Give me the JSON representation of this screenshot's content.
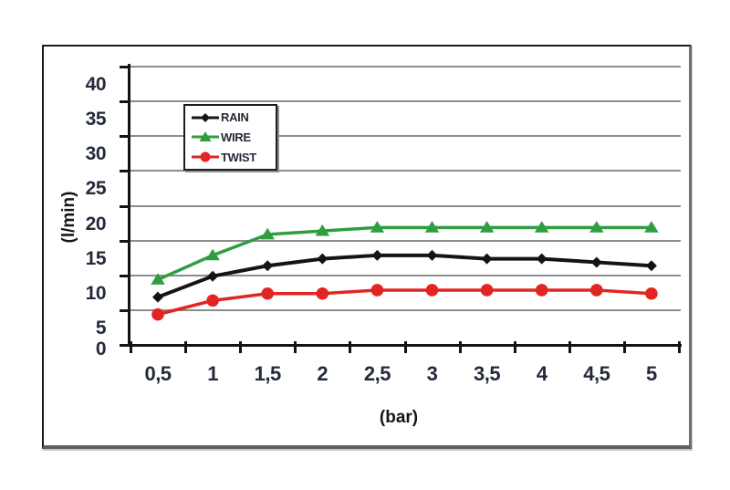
{
  "figure": {
    "type_note": "scanned line chart in a framed box",
    "background": "#ffffff",
    "frame_border_color": "#1b1b1b",
    "gridline_color": "#8c8c8c",
    "axis_color": "#141414",
    "tick_text_color": "#232a3a"
  },
  "chart_data": {
    "type": "line",
    "title": "",
    "xlabel": "(bar)",
    "ylabel": "(l/min)",
    "x": [
      0.5,
      1,
      1.5,
      2,
      2.5,
      3,
      3.5,
      4,
      4.5,
      5
    ],
    "x_tick_labels": [
      "0,5",
      "1",
      "1,5",
      "2",
      "2,5",
      "3",
      "3,5",
      "4",
      "4,5",
      "5"
    ],
    "y_tick_values": [
      0,
      5,
      10,
      15,
      20,
      25,
      30,
      35,
      40
    ],
    "y_tick_labels": [
      "0",
      "5",
      "10",
      "15",
      "20",
      "25",
      "30",
      "35",
      "40"
    ],
    "ylim": [
      0,
      40
    ],
    "grid": true,
    "legend_position": "upper-left",
    "series": [
      {
        "name": "RAIN",
        "color": "#141414",
        "marker": "diamond",
        "values": [
          9.5,
          12.5,
          14,
          15,
          15.5,
          15.5,
          15,
          15,
          14.5,
          14
        ]
      },
      {
        "name": "WIRE",
        "color": "#2f9e41",
        "marker": "triangle",
        "values": [
          12,
          15.5,
          18.5,
          19,
          19.5,
          19.5,
          19.5,
          19.5,
          19.5,
          19.5
        ]
      },
      {
        "name": "TWIST",
        "color": "#e32521",
        "marker": "circle",
        "values": [
          7,
          9,
          10,
          10,
          10.5,
          10.5,
          10.5,
          10.5,
          10.5,
          10
        ]
      }
    ]
  }
}
